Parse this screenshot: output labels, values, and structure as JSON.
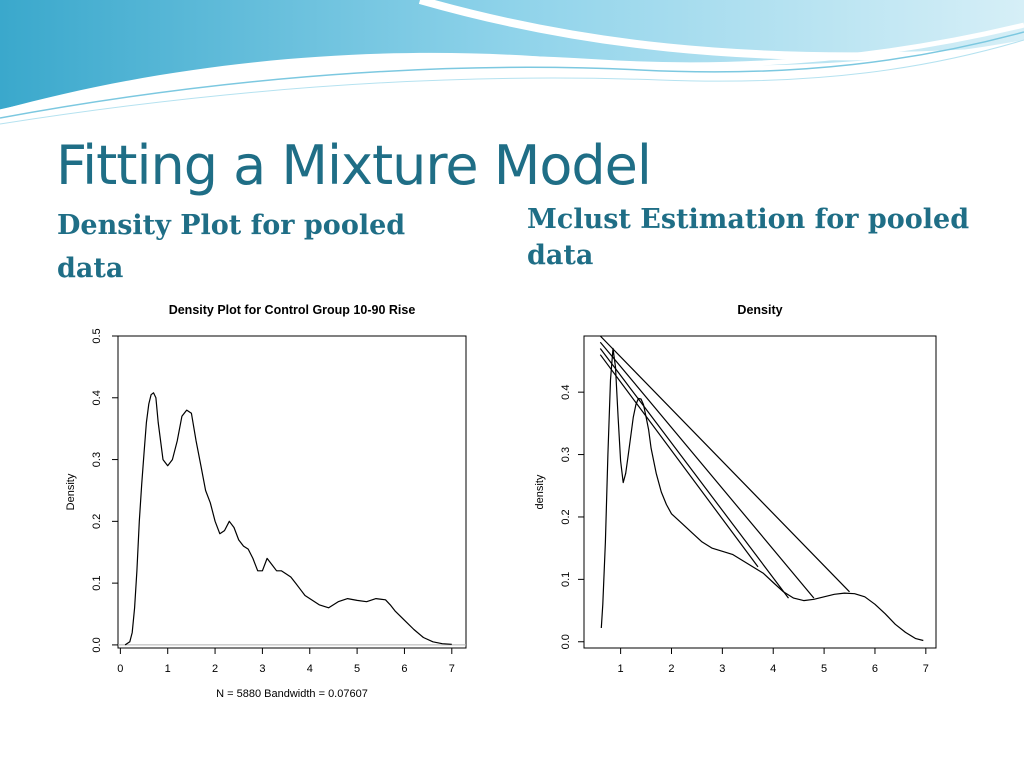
{
  "slide": {
    "title": "Fitting a Mixture Model",
    "subtitle_left": "Density Plot for pooled data",
    "subtitle_right": "Mclust Estimation for pooled data"
  },
  "colors": {
    "title": "#1f6e86",
    "banner_light": "#d6eff7",
    "banner_mid": "#8fd3ea",
    "banner_dark": "#3aa8cc"
  },
  "chart_data": [
    {
      "type": "line",
      "title": "Density Plot for Control Group 10-90 Rise",
      "xlabel": "N = 5880   Bandwidth = 0.07607",
      "ylabel": "Density",
      "xlim": [
        -0.05,
        7.3
      ],
      "ylim": [
        -0.005,
        0.5
      ],
      "xticks": [
        "0",
        "1",
        "2",
        "3",
        "4",
        "5",
        "6",
        "7"
      ],
      "yticks": [
        "0.0",
        "0.1",
        "0.2",
        "0.3",
        "0.4",
        "0.5"
      ],
      "baseline": 0,
      "grid": false,
      "series": [
        {
          "x": [
            0.1,
            0.2,
            0.25,
            0.3,
            0.35,
            0.4,
            0.45,
            0.5,
            0.55,
            0.6,
            0.65,
            0.7,
            0.75,
            0.8,
            0.9,
            1.0,
            1.1,
            1.2,
            1.3,
            1.4,
            1.5,
            1.6,
            1.7,
            1.8,
            1.9,
            2.0,
            2.1,
            2.2,
            2.3,
            2.4,
            2.5,
            2.6,
            2.7,
            2.8,
            2.9,
            3.0,
            3.1,
            3.2,
            3.3,
            3.4,
            3.5,
            3.6,
            3.7,
            3.8,
            3.9,
            4.0,
            4.2,
            4.4,
            4.6,
            4.8,
            5.0,
            5.2,
            5.4,
            5.6,
            5.7,
            5.8,
            6.0,
            6.2,
            6.4,
            6.6,
            6.8,
            7.0
          ],
          "y": [
            0.0,
            0.005,
            0.02,
            0.06,
            0.12,
            0.2,
            0.26,
            0.31,
            0.36,
            0.39,
            0.405,
            0.408,
            0.4,
            0.36,
            0.3,
            0.29,
            0.3,
            0.33,
            0.37,
            0.38,
            0.375,
            0.33,
            0.29,
            0.25,
            0.23,
            0.2,
            0.18,
            0.185,
            0.2,
            0.19,
            0.17,
            0.16,
            0.155,
            0.14,
            0.12,
            0.12,
            0.14,
            0.13,
            0.12,
            0.12,
            0.115,
            0.11,
            0.1,
            0.09,
            0.08,
            0.075,
            0.065,
            0.06,
            0.07,
            0.075,
            0.072,
            0.07,
            0.075,
            0.073,
            0.065,
            0.055,
            0.04,
            0.025,
            0.012,
            0.005,
            0.002,
            0.001
          ]
        }
      ]
    },
    {
      "type": "line",
      "title": "Density",
      "xlabel": "",
      "ylabel": "density",
      "xlim": [
        0.28,
        7.2
      ],
      "ylim": [
        -0.01,
        0.49
      ],
      "xticks": [
        "1",
        "2",
        "3",
        "4",
        "5",
        "6",
        "7"
      ],
      "yticks": [
        "0.0",
        "0.1",
        "0.2",
        "0.3",
        "0.4"
      ],
      "grid": false,
      "series": [
        {
          "x": [
            0.62,
            0.65,
            0.7,
            0.75,
            0.8,
            0.85,
            0.9,
            0.95,
            1.0,
            1.05,
            1.1,
            1.15,
            1.2,
            1.25,
            1.3,
            1.35,
            1.4,
            1.45,
            1.5,
            1.55,
            1.6,
            1.7,
            1.8,
            1.9,
            2.0,
            2.2,
            2.4,
            2.6,
            2.8,
            3.0,
            3.2,
            3.4,
            3.6,
            3.8,
            4.0,
            4.2,
            4.4,
            4.6,
            4.8,
            5.0,
            5.2,
            5.4,
            5.6,
            5.8,
            6.0,
            6.2,
            6.4,
            6.6,
            6.8,
            6.95
          ],
          "y": [
            0.022,
            0.06,
            0.16,
            0.3,
            0.42,
            0.47,
            0.44,
            0.36,
            0.29,
            0.255,
            0.27,
            0.3,
            0.33,
            0.36,
            0.38,
            0.39,
            0.389,
            0.38,
            0.36,
            0.34,
            0.31,
            0.27,
            0.24,
            0.22,
            0.205,
            0.19,
            0.175,
            0.16,
            0.15,
            0.145,
            0.14,
            0.13,
            0.12,
            0.11,
            0.095,
            0.08,
            0.07,
            0.066,
            0.068,
            0.072,
            0.076,
            0.078,
            0.077,
            0.072,
            0.06,
            0.045,
            0.028,
            0.015,
            0.005,
            0.002
          ]
        },
        {
          "x": [
            0.6,
            3.7
          ],
          "y": [
            0.46,
            0.12
          ]
        },
        {
          "x": [
            0.6,
            4.3
          ],
          "y": [
            0.47,
            0.07
          ]
        },
        {
          "x": [
            0.6,
            4.8
          ],
          "y": [
            0.48,
            0.07
          ]
        },
        {
          "x": [
            0.6,
            5.5
          ],
          "y": [
            0.49,
            0.08
          ]
        }
      ]
    }
  ]
}
